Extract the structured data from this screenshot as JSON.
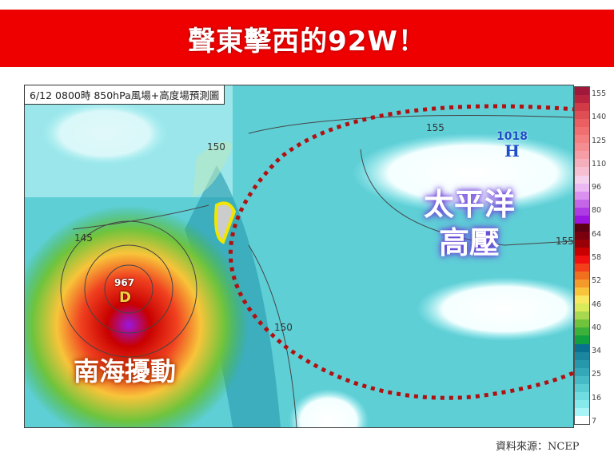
{
  "title": "聲東擊西的92W！",
  "map": {
    "title": "6/12 0800時  850hPa風場+高度場預測圖",
    "labels": {
      "pacific_high_line1": "太平洋",
      "pacific_high_line2": "高壓",
      "scs_disturbance": "南海擾動"
    },
    "high_center": {
      "value": "1018",
      "symbol": "H"
    },
    "low_center": {
      "value": "967",
      "symbol": "D"
    },
    "contour_labels": [
      "155",
      "150",
      "145",
      "150",
      "155"
    ]
  },
  "legend": {
    "ticks": [
      "155",
      "140",
      "125",
      "110",
      "96",
      "80",
      "64",
      "58",
      "52",
      "46",
      "40",
      "34",
      "25",
      "16",
      "7"
    ],
    "colors": [
      "#a0183a",
      "#b8243e",
      "#d23a48",
      "#e04e55",
      "#ea5f62",
      "#f06f70",
      "#f47f80",
      "#f58e92",
      "#f59ea6",
      "#f5aebb",
      "#f7c0d2",
      "#f4d2ee",
      "#eab8f2",
      "#d990ee",
      "#c566e8",
      "#ad3ce4",
      "#9a16e0",
      "#5a0010",
      "#7a0010",
      "#9a0008",
      "#c80000",
      "#f01010",
      "#f4401a",
      "#f07020",
      "#f49a2a",
      "#f8c43a",
      "#f8e860",
      "#d8ea5a",
      "#a8d850",
      "#70c43c",
      "#3cb23a",
      "#10a040",
      "#0a7090",
      "#1a86a0",
      "#2698ac",
      "#34a8b8",
      "#46bac6",
      "#5accd4",
      "#6edce0",
      "#86eaec",
      "#a8f4f6",
      "#ffffff"
    ]
  },
  "source": "資料來源：NCEP",
  "colors": {
    "banner": "#ee0000",
    "boundary_dotted": "#b01010",
    "taiwan_outline": "#f2e600"
  }
}
